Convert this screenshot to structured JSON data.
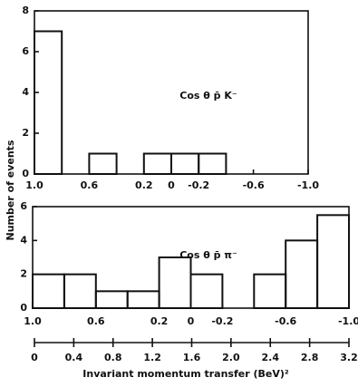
{
  "chart_data": [
    {
      "type": "histogram",
      "ylabel": "Number of events",
      "annotation": "Cos θ p̄ K⁻",
      "bins": [
        1.0,
        0.8,
        0.6,
        0.4,
        0.2,
        0,
        -0.2,
        -0.4,
        -0.6,
        -0.8,
        -1.0
      ],
      "values": [
        7,
        0,
        1,
        0,
        1,
        1,
        1,
        0,
        0,
        0
      ],
      "color": "#111111",
      "xlim": [
        1.0,
        -1.0
      ],
      "xticks": [
        {
          "value": 1,
          "label": "1.0"
        },
        0.6,
        0.2,
        0,
        -0.2,
        -0.6,
        {
          "value": -1,
          "label": "-1.0"
        }
      ],
      "ylim": [
        0,
        8
      ],
      "yticks": [
        0,
        2,
        4,
        6,
        8
      ]
    },
    {
      "type": "histogram",
      "annotation": "Cos θ p̄ π⁻",
      "bins": [
        1.0,
        0.8,
        0.6,
        0.4,
        0.2,
        0,
        -0.2,
        -0.4,
        -0.6,
        -0.8,
        -1.0
      ],
      "values": [
        2,
        2,
        1,
        1,
        3,
        2,
        0,
        2,
        4,
        5.5
      ],
      "color": "#111111",
      "xlim": [
        1.0,
        -1.0
      ],
      "xticks": [
        {
          "value": 1,
          "label": "1.0"
        },
        0.6,
        0.2,
        0,
        -0.2,
        -0.6,
        {
          "value": -1,
          "label": "-1.0"
        }
      ],
      "ylim": [
        0,
        6
      ],
      "yticks": [
        0,
        2,
        4,
        6
      ],
      "x2label": "Invariant momentum transfer (BeV)²",
      "x2lim": [
        0,
        3.2
      ],
      "x2ticks": [
        0,
        0.4,
        0.8,
        1.2,
        1.6,
        {
          "value": 2,
          "label": "2.0"
        },
        2.4,
        2.8,
        3.2
      ]
    }
  ]
}
